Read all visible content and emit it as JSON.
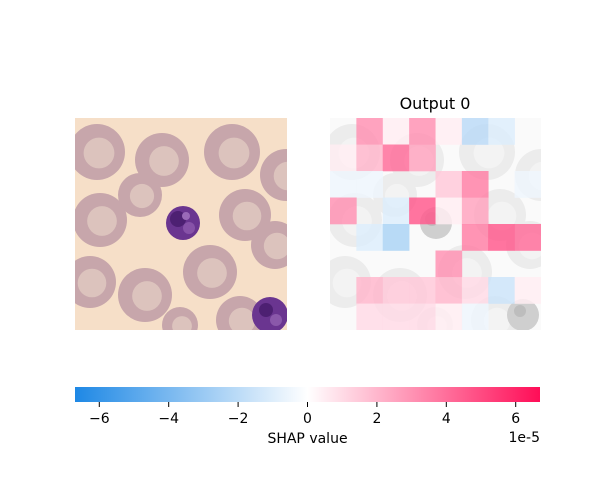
{
  "chart_data": {
    "type": "heatmap",
    "panels": [
      {
        "name": "input-image",
        "title": "",
        "kind": "image"
      },
      {
        "name": "shap-overlay",
        "title": "Output 0",
        "kind": "shap-heatmap"
      }
    ],
    "grid": {
      "rows": 8,
      "cols": 8
    },
    "shap_values_1e-5": [
      [
        0.0,
        3.0,
        0.5,
        3.0,
        0.5,
        -2.0,
        -1.0,
        0.0
      ],
      [
        0.5,
        2.0,
        4.0,
        2.5,
        0.0,
        0.0,
        0.0,
        0.0
      ],
      [
        -0.5,
        -0.5,
        0.0,
        0.0,
        1.5,
        3.5,
        0.0,
        -0.5
      ],
      [
        3.0,
        0.0,
        -1.0,
        4.5,
        0.5,
        2.5,
        0.0,
        0.0
      ],
      [
        0.0,
        -1.0,
        -2.5,
        0.0,
        0.0,
        3.5,
        4.5,
        4.0
      ],
      [
        0.0,
        0.0,
        0.0,
        0.0,
        3.0,
        0.0,
        0.0,
        0.0
      ],
      [
        0.0,
        2.0,
        1.5,
        1.5,
        2.0,
        1.0,
        -1.5,
        0.5
      ],
      [
        0.0,
        1.0,
        1.0,
        1.0,
        0.5,
        -0.5,
        0.0,
        0.0
      ]
    ],
    "colorbar": {
      "label": "SHAP value",
      "offset_label": "1e-5",
      "range": [
        -6.7,
        6.7
      ],
      "ticks": [
        -6,
        -4,
        -2,
        0,
        2,
        4,
        6
      ],
      "tick_labels": [
        "−6",
        "−4",
        "−2",
        "0",
        "2",
        "4",
        "6"
      ],
      "color_negative": "#1e88e5",
      "color_zero": "#ffffff",
      "color_positive": "#ff0d57"
    },
    "image_colors": {
      "background": "#f6dfc8",
      "cell": "#c7a6ab",
      "cell_center": "#dcc3bd",
      "nucleus": "#5c2a82"
    }
  }
}
